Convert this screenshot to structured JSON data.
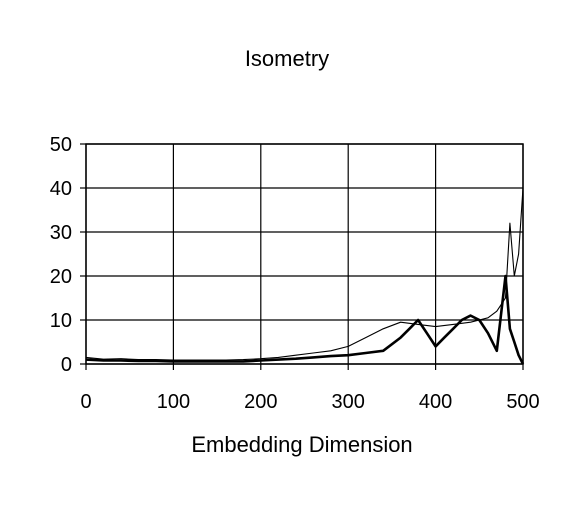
{
  "chart_data": {
    "type": "line",
    "title": "Isometry",
    "xlabel": "Embedding Dimension",
    "ylabel": "",
    "xlim": [
      0,
      500
    ],
    "ylim": [
      0,
      50
    ],
    "x_ticks": [
      "0",
      "100",
      "200",
      "300",
      "400",
      "500"
    ],
    "y_ticks": [
      "0",
      "10",
      "20",
      "30",
      "40",
      "50"
    ],
    "grid": true,
    "legend": "none",
    "colors": {
      "background": "#ffffff",
      "axes": "#000000",
      "grid": "#000000",
      "series": "#000000"
    },
    "series": [
      {
        "style": "thin",
        "x": [
          0,
          20,
          40,
          60,
          80,
          100,
          120,
          140,
          160,
          180,
          200,
          220,
          240,
          260,
          280,
          300,
          320,
          340,
          360,
          380,
          400,
          420,
          440,
          450,
          460,
          470,
          480,
          485,
          490,
          495,
          500
        ],
        "y": [
          1.5,
          1.1,
          1.2,
          1.0,
          1.0,
          0.9,
          0.9,
          0.9,
          0.9,
          1.0,
          1.2,
          1.5,
          2.0,
          2.5,
          3.0,
          4.0,
          6.0,
          8.0,
          9.5,
          9.0,
          8.5,
          9.0,
          9.5,
          10.0,
          10.5,
          12.0,
          15.0,
          32.0,
          20.0,
          25.0,
          40.0
        ]
      },
      {
        "style": "thick",
        "x": [
          0,
          20,
          40,
          60,
          80,
          100,
          120,
          140,
          160,
          180,
          200,
          220,
          240,
          260,
          280,
          300,
          320,
          340,
          360,
          370,
          380,
          390,
          400,
          410,
          420,
          430,
          440,
          450,
          460,
          470,
          480,
          485,
          490,
          495,
          500
        ],
        "y": [
          1.0,
          0.8,
          0.8,
          0.7,
          0.7,
          0.6,
          0.6,
          0.6,
          0.6,
          0.6,
          0.8,
          1.0,
          1.2,
          1.5,
          1.8,
          2.0,
          2.5,
          3.0,
          6.0,
          8.0,
          10.0,
          7.0,
          4.0,
          6.0,
          8.0,
          10.0,
          11.0,
          10.0,
          7.0,
          3.0,
          20.0,
          8.0,
          5.0,
          2.0,
          0.0
        ]
      }
    ]
  }
}
